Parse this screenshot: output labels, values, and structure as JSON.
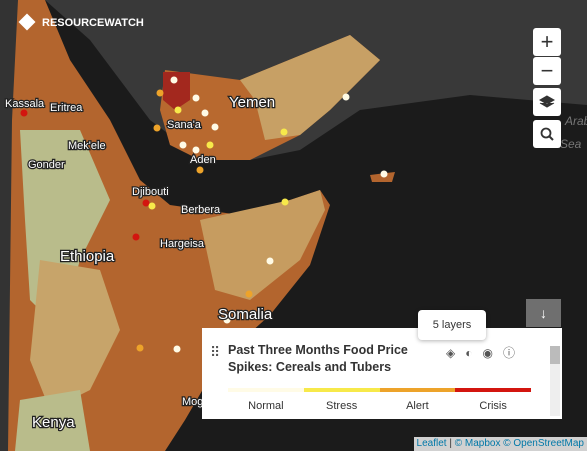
{
  "brand": "RESOURCEWATCH",
  "map_labels": {
    "yemen": "Yemen",
    "eritrea": "Eritrea",
    "kassala": "Kassala",
    "mekele": "Mek'ele",
    "gonder": "Gonder",
    "sanaa": "Sana'a",
    "aden": "Aden",
    "djibouti": "Djibouti",
    "berbera": "Berbera",
    "hargeisa": "Hargeisa",
    "ethiopia": "Ethiopia",
    "somalia": "Somalia",
    "kenya": "Kenya",
    "arabian": "Arabi",
    "sea": "Sea",
    "mog": "Mog"
  },
  "controls": {
    "zoom_in": "+",
    "zoom_out": "−"
  },
  "legend": {
    "title": "Past Three Months Food Price Spikes: Cereals and Tubers",
    "tooltip": "5 layers",
    "items": [
      {
        "name": "Normal",
        "color": "#fffbe6"
      },
      {
        "name": "Stress",
        "color": "#f7e94a"
      },
      {
        "name": "Alert",
        "color": "#eda32a"
      },
      {
        "name": "Crisis",
        "color": "#d3150f"
      }
    ]
  },
  "attribution": {
    "leaflet": "Leaflet",
    "sep": "|",
    "mapbox": "© Mapbox",
    "osm": "© OpenStreetMap"
  }
}
